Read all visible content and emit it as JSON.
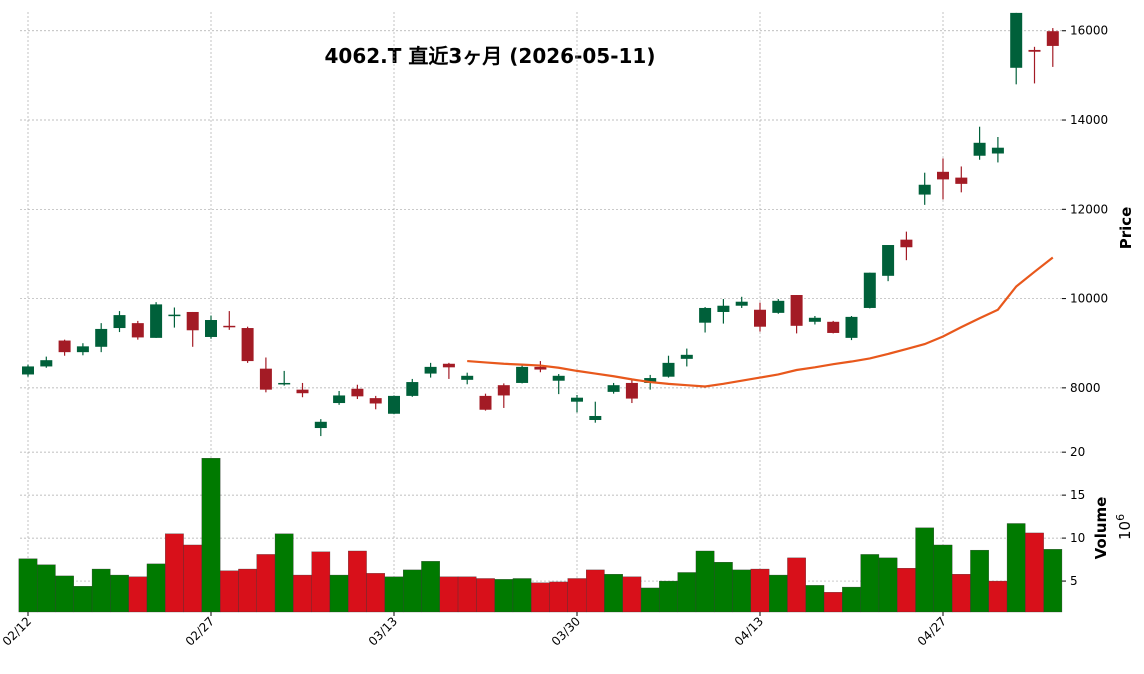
{
  "chart_data": {
    "type": "candlestick",
    "title": "4062.T  直近3ヶ月  (2026-05-11)",
    "categories": [
      "02/12",
      null,
      null,
      null,
      null,
      null,
      null,
      null,
      null,
      null,
      "02/27",
      null,
      null,
      null,
      null,
      null,
      null,
      null,
      null,
      null,
      "03/13",
      null,
      null,
      null,
      null,
      null,
      null,
      null,
      null,
      null,
      "03/30",
      null,
      null,
      null,
      null,
      null,
      null,
      null,
      null,
      null,
      "04/13",
      null,
      null,
      null,
      null,
      null,
      null,
      null,
      null,
      null,
      "04/27",
      null,
      null,
      null,
      null,
      null,
      null
    ],
    "open": [
      8300,
      8480,
      9060,
      8800,
      8920,
      9340,
      9450,
      9120,
      9610,
      9700,
      9140,
      9390,
      9340,
      8430,
      8090,
      7960,
      7100,
      7660,
      7980,
      7770,
      7420,
      7820,
      8320,
      8540,
      8180,
      7820,
      8060,
      8110,
      8470,
      8160,
      7690,
      7280,
      7910,
      8110,
      8110,
      8250,
      8650,
      9460,
      9700,
      9840,
      9750,
      9680,
      10080,
      9480,
      9480,
      9120,
      9790,
      10510,
      11320,
      12330,
      12840,
      12710,
      13200,
      13250,
      15170,
      15570,
      15990
    ],
    "high": [
      8520,
      8700,
      9080,
      9000,
      9450,
      9720,
      9500,
      9920,
      9800,
      9700,
      9620,
      9720,
      9370,
      8680,
      8380,
      8110,
      7300,
      7930,
      8070,
      7820,
      7830,
      8200,
      8560,
      8560,
      8340,
      7870,
      8100,
      8500,
      8600,
      8310,
      7840,
      7690,
      8110,
      8200,
      8290,
      8720,
      8880,
      9810,
      9990,
      10040,
      9910,
      9990,
      10080,
      9610,
      9500,
      9610,
      10580,
      11200,
      11500,
      12820,
      13140,
      12960,
      13850,
      13620,
      16400,
      15640,
      16060
    ],
    "low": [
      8250,
      8450,
      8720,
      8730,
      8800,
      9250,
      9080,
      9120,
      9350,
      8920,
      9100,
      9300,
      8560,
      7900,
      8050,
      7790,
      6920,
      7620,
      7750,
      7520,
      7410,
      7800,
      8230,
      8200,
      8080,
      7490,
      7550,
      8100,
      8350,
      7860,
      7450,
      7220,
      7870,
      7660,
      7960,
      8230,
      8480,
      9240,
      9440,
      9790,
      9260,
      9660,
      9220,
      9420,
      9220,
      9070,
      9780,
      10390,
      10860,
      12100,
      12220,
      12380,
      13110,
      13050,
      14800,
      14820,
      15190
    ],
    "close": [
      8480,
      8620,
      8800,
      8930,
      9320,
      9630,
      9130,
      9870,
      9640,
      9290,
      9520,
      9360,
      8600,
      7960,
      8110,
      7880,
      7240,
      7830,
      7810,
      7650,
      7820,
      8130,
      8470,
      8460,
      8270,
      7510,
      7830,
      8470,
      8410,
      8270,
      7780,
      7370,
      8060,
      7760,
      8220,
      8560,
      8740,
      9790,
      9840,
      9930,
      9370,
      9950,
      9390,
      9570,
      9230,
      9590,
      10580,
      11200,
      11150,
      12550,
      12670,
      12570,
      13490,
      13380,
      16400,
      15530,
      15660
    ],
    "up_color": "#00603a",
    "down_color": "#a31b25",
    "moving_average": {
      "color": "#e8581c",
      "values": [
        null,
        null,
        null,
        null,
        null,
        null,
        null,
        null,
        null,
        null,
        null,
        null,
        null,
        null,
        null,
        null,
        null,
        null,
        null,
        null,
        null,
        null,
        null,
        null,
        8600,
        8570,
        8540,
        8520,
        8500,
        8450,
        8380,
        8320,
        8260,
        8190,
        8130,
        8090,
        8060,
        8030,
        8090,
        8160,
        8230,
        8300,
        8400,
        8460,
        8530,
        8590,
        8660,
        8760,
        8870,
        8980,
        9150,
        9360,
        9560,
        9750,
        10270,
        10600,
        10920
      ]
    },
    "ylabel": "Price",
    "ylim": [
      6720,
      16420
    ],
    "yticks": [
      8000,
      10000,
      12000,
      14000,
      16000
    ],
    "volume": {
      "ylabel": "Volume",
      "offset_base": "10",
      "offset_exponent": "6",
      "ylim": [
        1.4,
        20.6
      ],
      "yticks": [
        5,
        10,
        15,
        20
      ],
      "values": [
        7.6,
        6.9,
        5.6,
        4.4,
        6.4,
        5.7,
        5.5,
        7.0,
        10.5,
        9.2,
        19.3,
        6.2,
        6.4,
        8.1,
        10.5,
        5.7,
        8.4,
        5.7,
        8.5,
        5.9,
        5.5,
        6.3,
        7.3,
        5.5,
        5.5,
        5.3,
        5.2,
        5.3,
        4.8,
        4.9,
        5.3,
        6.3,
        5.8,
        5.5,
        4.2,
        5.0,
        6.0,
        8.5,
        7.2,
        6.3,
        6.4,
        5.7,
        7.7,
        4.5,
        3.7,
        4.3,
        8.1,
        7.7,
        6.5,
        11.2,
        9.2,
        5.8,
        8.6,
        5.0,
        11.7,
        10.6,
        8.7
      ],
      "colors": [
        "#007a00",
        "#007a00",
        "#007a00",
        "#007a00",
        "#007a00",
        "#007a00",
        "#d8101a",
        "#007a00",
        "#d8101a",
        "#d8101a",
        "#007a00",
        "#d8101a",
        "#d8101a",
        "#d8101a",
        "#007a00",
        "#d8101a",
        "#d8101a",
        "#007a00",
        "#d8101a",
        "#d8101a",
        "#007a00",
        "#007a00",
        "#007a00",
        "#d8101a",
        "#d8101a",
        "#d8101a",
        "#007a00",
        "#007a00",
        "#d8101a",
        "#d8101a",
        "#d8101a",
        "#d8101a",
        "#007a00",
        "#d8101a",
        "#007a00",
        "#007a00",
        "#007a00",
        "#007a00",
        "#007a00",
        "#007a00",
        "#d8101a",
        "#007a00",
        "#d8101a",
        "#007a00",
        "#d8101a",
        "#007a00",
        "#007a00",
        "#007a00",
        "#d8101a",
        "#007a00",
        "#007a00",
        "#d8101a",
        "#007a00",
        "#d8101a",
        "#007a00",
        "#d8101a",
        "#007a00"
      ]
    },
    "grid": true
  }
}
